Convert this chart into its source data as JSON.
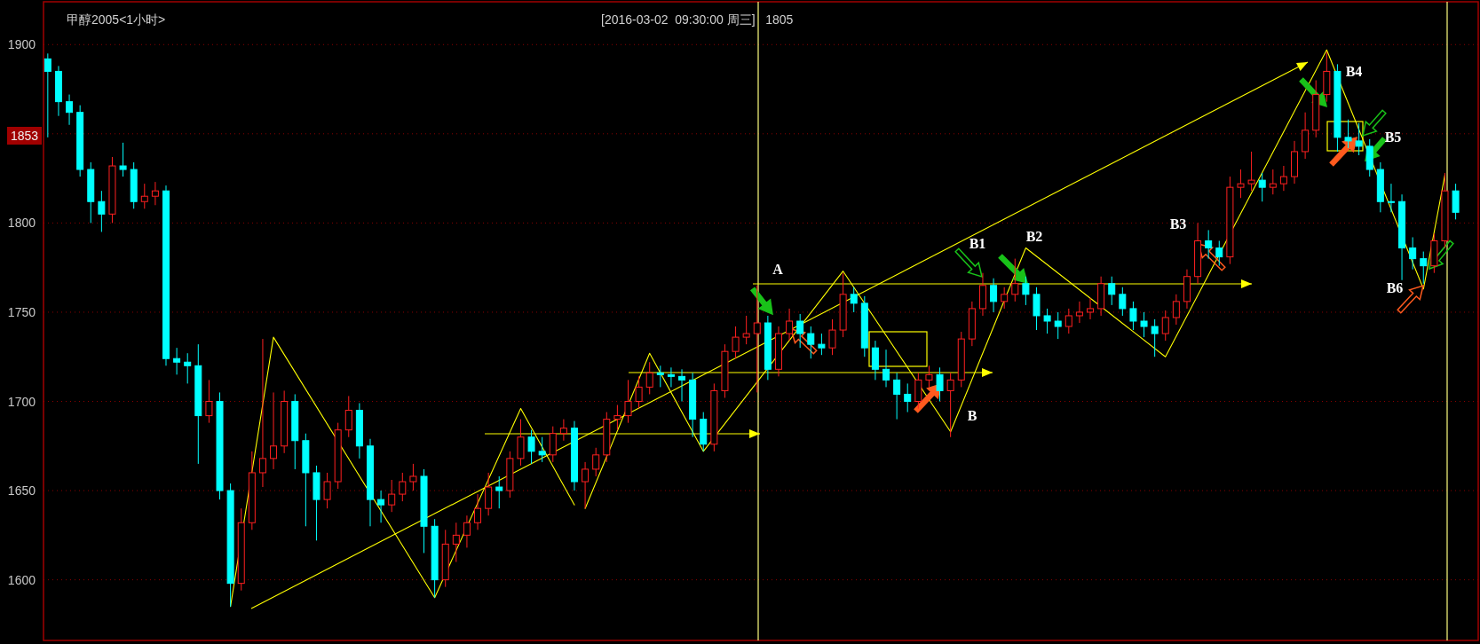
{
  "chart_data": {
    "type": "candlestick",
    "title": "甲醇2005<1小时>",
    "subtitle": "[2016-03-02  09:30:00 周三]   1805",
    "categories": [
      null,
      null,
      null,
      null,
      null,
      null,
      null,
      null,
      null,
      null,
      null,
      null,
      null,
      null,
      null,
      null,
      null,
      null,
      null,
      null,
      null,
      null,
      null,
      null,
      null,
      null,
      null,
      null,
      null,
      null,
      null,
      null,
      null,
      null,
      null,
      null,
      null,
      null,
      null,
      null,
      null,
      null,
      null,
      null,
      null,
      null,
      null,
      null,
      null,
      null,
      null,
      null,
      null,
      null,
      null,
      null,
      null,
      null,
      null,
      null,
      null,
      null,
      null,
      null,
      null,
      null,
      null,
      null,
      null,
      null,
      null,
      null,
      null,
      null,
      null,
      null,
      null,
      null,
      null,
      null,
      null,
      null,
      null,
      null,
      null,
      null,
      null,
      null,
      null,
      null,
      null,
      null,
      null,
      null,
      null,
      null,
      null,
      null,
      null,
      null,
      null,
      null,
      null,
      null,
      null,
      null,
      null,
      null,
      null,
      null,
      null,
      null,
      null,
      null,
      null,
      null,
      null,
      null,
      null,
      null,
      null,
      null,
      null,
      null,
      null,
      null,
      null,
      null,
      null,
      null,
      null,
      null
    ],
    "ohlc": [
      [
        1892,
        1895,
        1848,
        1885
      ],
      [
        1885,
        1888,
        1860,
        1868
      ],
      [
        1868,
        1872,
        1855,
        1862
      ],
      [
        1862,
        1866,
        1826,
        1830
      ],
      [
        1830,
        1834,
        1800,
        1812
      ],
      [
        1812,
        1818,
        1795,
        1805
      ],
      [
        1805,
        1837,
        1800,
        1832
      ],
      [
        1832,
        1845,
        1826,
        1830
      ],
      [
        1830,
        1834,
        1808,
        1812
      ],
      [
        1812,
        1822,
        1808,
        1815
      ],
      [
        1815,
        1823,
        1810,
        1818
      ],
      [
        1818,
        1821,
        1720,
        1724
      ],
      [
        1724,
        1730,
        1715,
        1722
      ],
      [
        1722,
        1727,
        1710,
        1720
      ],
      [
        1720,
        1732,
        1665,
        1692
      ],
      [
        1692,
        1712,
        1688,
        1700
      ],
      [
        1700,
        1705,
        1645,
        1650
      ],
      [
        1650,
        1654,
        1585,
        1598
      ],
      [
        1598,
        1640,
        1594,
        1632
      ],
      [
        1632,
        1672,
        1628,
        1660
      ],
      [
        1660,
        1735,
        1652,
        1668
      ],
      [
        1668,
        1705,
        1662,
        1675
      ],
      [
        1675,
        1706,
        1671,
        1700
      ],
      [
        1700,
        1704,
        1662,
        1678
      ],
      [
        1678,
        1682,
        1630,
        1660
      ],
      [
        1660,
        1664,
        1622,
        1645
      ],
      [
        1645,
        1660,
        1640,
        1655
      ],
      [
        1655,
        1688,
        1651,
        1684
      ],
      [
        1684,
        1703,
        1680,
        1695
      ],
      [
        1695,
        1699,
        1668,
        1675
      ],
      [
        1675,
        1679,
        1630,
        1645
      ],
      [
        1645,
        1650,
        1632,
        1642
      ],
      [
        1642,
        1656,
        1638,
        1648
      ],
      [
        1648,
        1660,
        1644,
        1655
      ],
      [
        1655,
        1665,
        1650,
        1658
      ],
      [
        1658,
        1662,
        1615,
        1630
      ],
      [
        1630,
        1634,
        1590,
        1600
      ],
      [
        1600,
        1628,
        1596,
        1620
      ],
      [
        1620,
        1632,
        1610,
        1625
      ],
      [
        1625,
        1636,
        1618,
        1632
      ],
      [
        1632,
        1648,
        1628,
        1640
      ],
      [
        1640,
        1660,
        1636,
        1652
      ],
      [
        1652,
        1658,
        1640,
        1650
      ],
      [
        1650,
        1672,
        1646,
        1668
      ],
      [
        1668,
        1690,
        1664,
        1680
      ],
      [
        1680,
        1684,
        1665,
        1672
      ],
      [
        1672,
        1680,
        1666,
        1670
      ],
      [
        1670,
        1686,
        1666,
        1682
      ],
      [
        1682,
        1690,
        1678,
        1685
      ],
      [
        1685,
        1689,
        1650,
        1655
      ],
      [
        1655,
        1666,
        1640,
        1662
      ],
      [
        1662,
        1674,
        1658,
        1670
      ],
      [
        1670,
        1694,
        1666,
        1690
      ],
      [
        1690,
        1698,
        1684,
        1692
      ],
      [
        1692,
        1712,
        1688,
        1700
      ],
      [
        1700,
        1714,
        1696,
        1708
      ],
      [
        1708,
        1722,
        1704,
        1716
      ],
      [
        1716,
        1720,
        1708,
        1715
      ],
      [
        1715,
        1719,
        1708,
        1714
      ],
      [
        1714,
        1718,
        1700,
        1712
      ],
      [
        1712,
        1716,
        1680,
        1690
      ],
      [
        1690,
        1694,
        1672,
        1676
      ],
      [
        1676,
        1710,
        1672,
        1706
      ],
      [
        1706,
        1732,
        1702,
        1728
      ],
      [
        1728,
        1742,
        1724,
        1736
      ],
      [
        1736,
        1748,
        1732,
        1738
      ],
      [
        1738,
        1765,
        1705,
        1744
      ],
      [
        1744,
        1748,
        1712,
        1718
      ],
      [
        1718,
        1742,
        1714,
        1738
      ],
      [
        1738,
        1752,
        1734,
        1745
      ],
      [
        1745,
        1749,
        1730,
        1738
      ],
      [
        1738,
        1742,
        1724,
        1732
      ],
      [
        1732,
        1738,
        1726,
        1730
      ],
      [
        1730,
        1746,
        1726,
        1740
      ],
      [
        1740,
        1772,
        1736,
        1760
      ],
      [
        1760,
        1764,
        1750,
        1755
      ],
      [
        1755,
        1759,
        1725,
        1730
      ],
      [
        1730,
        1734,
        1712,
        1718
      ],
      [
        1718,
        1729,
        1708,
        1712
      ],
      [
        1712,
        1716,
        1690,
        1704
      ],
      [
        1704,
        1710,
        1694,
        1700
      ],
      [
        1700,
        1716,
        1696,
        1712
      ],
      [
        1712,
        1720,
        1708,
        1715
      ],
      [
        1715,
        1719,
        1700,
        1706
      ],
      [
        1706,
        1716,
        1680,
        1712
      ],
      [
        1712,
        1739,
        1708,
        1735
      ],
      [
        1735,
        1756,
        1731,
        1752
      ],
      [
        1752,
        1772,
        1748,
        1765
      ],
      [
        1765,
        1769,
        1750,
        1756
      ],
      [
        1756,
        1764,
        1752,
        1760
      ],
      [
        1760,
        1780,
        1756,
        1766
      ],
      [
        1766,
        1770,
        1754,
        1760
      ],
      [
        1760,
        1764,
        1740,
        1748
      ],
      [
        1748,
        1752,
        1738,
        1745
      ],
      [
        1745,
        1750,
        1735,
        1742
      ],
      [
        1742,
        1752,
        1738,
        1748
      ],
      [
        1748,
        1756,
        1744,
        1750
      ],
      [
        1750,
        1758,
        1746,
        1752
      ],
      [
        1752,
        1770,
        1748,
        1766
      ],
      [
        1766,
        1770,
        1754,
        1760
      ],
      [
        1760,
        1764,
        1748,
        1752
      ],
      [
        1752,
        1756,
        1740,
        1745
      ],
      [
        1745,
        1750,
        1736,
        1742
      ],
      [
        1742,
        1746,
        1725,
        1738
      ],
      [
        1738,
        1751,
        1734,
        1747
      ],
      [
        1747,
        1760,
        1743,
        1756
      ],
      [
        1756,
        1774,
        1752,
        1770
      ],
      [
        1770,
        1800,
        1766,
        1790
      ],
      [
        1790,
        1796,
        1780,
        1786
      ],
      [
        1786,
        1790,
        1776,
        1781
      ],
      [
        1781,
        1826,
        1777,
        1820
      ],
      [
        1820,
        1830,
        1814,
        1822
      ],
      [
        1822,
        1840,
        1818,
        1824
      ],
      [
        1824,
        1828,
        1812,
        1820
      ],
      [
        1820,
        1830,
        1816,
        1822
      ],
      [
        1822,
        1832,
        1818,
        1826
      ],
      [
        1826,
        1846,
        1822,
        1840
      ],
      [
        1840,
        1862,
        1836,
        1852
      ],
      [
        1852,
        1880,
        1848,
        1872
      ],
      [
        1872,
        1896,
        1868,
        1885
      ],
      [
        1885,
        1889,
        1840,
        1848
      ],
      [
        1848,
        1858,
        1842,
        1846
      ],
      [
        1846,
        1856,
        1838,
        1843
      ],
      [
        1843,
        1847,
        1826,
        1830
      ],
      [
        1830,
        1834,
        1806,
        1812
      ],
      [
        1812,
        1822,
        1806,
        1812
      ],
      [
        1812,
        1816,
        1768,
        1786
      ],
      [
        1786,
        1792,
        1774,
        1780
      ],
      [
        1780,
        1784,
        1766,
        1776
      ],
      [
        1776,
        1794,
        1772,
        1790
      ],
      [
        1790,
        1828,
        1786,
        1818
      ],
      [
        1818,
        1822,
        1802,
        1806
      ]
    ],
    "series": [
      {
        "type": "line",
        "color": "#ffff00",
        "values": [
          null,
          null,
          null,
          null,
          null,
          null,
          null,
          null,
          null,
          null,
          null,
          null,
          null,
          null,
          null,
          null,
          null,
          1585,
          null,
          null,
          null,
          1736,
          null,
          null,
          null,
          null,
          null,
          null,
          null,
          null,
          null,
          null,
          null,
          null,
          null,
          null,
          1590,
          null,
          null,
          null,
          null,
          null,
          null,
          null,
          1696,
          null,
          null,
          null,
          null,
          1642,
          null,
          null,
          null,
          null,
          null,
          null,
          null,
          null,
          null,
          null,
          null,
          null,
          null,
          null,
          null,
          null,
          null,
          null,
          null,
          null,
          null,
          null,
          null,
          null,
          null,
          null,
          null,
          null,
          null,
          null,
          null,
          null,
          null,
          null,
          null,
          null,
          null,
          null,
          null,
          null,
          null,
          null,
          null,
          null,
          null,
          null,
          null,
          null,
          null,
          null,
          null,
          null,
          null,
          null,
          null,
          null,
          null,
          null,
          null,
          null,
          null,
          null,
          null,
          null,
          null,
          null,
          null,
          null,
          null,
          null,
          null,
          null,
          null,
          null,
          null,
          null,
          null,
          null,
          null,
          null,
          null,
          null
        ]
      },
      {
        "type": "line",
        "color": "#ffff00",
        "values": [
          null,
          null,
          null,
          null,
          null,
          null,
          null,
          null,
          null,
          null,
          null,
          null,
          null,
          null,
          null,
          null,
          null,
          null,
          null,
          null,
          null,
          null,
          null,
          null,
          null,
          null,
          null,
          null,
          null,
          null,
          null,
          null,
          null,
          null,
          null,
          null,
          null,
          null,
          null,
          null,
          null,
          null,
          null,
          null,
          null,
          null,
          null,
          null,
          null,
          null,
          1640,
          null,
          null,
          null,
          null,
          null,
          1727,
          null,
          null,
          null,
          null,
          1672,
          null,
          null,
          null,
          null,
          null,
          null,
          null,
          null,
          null,
          null,
          null,
          null,
          1773,
          null,
          null,
          null,
          null,
          null,
          null,
          null,
          null,
          null,
          1683,
          null,
          null,
          null,
          null,
          null,
          null,
          1786,
          null,
          null,
          null,
          null,
          null,
          null,
          null,
          null,
          null,
          null,
          null,
          null,
          1725,
          null,
          null,
          null,
          null,
          null,
          null,
          null,
          null,
          null,
          null,
          null,
          null,
          null,
          null,
          1897,
          null,
          null,
          null,
          null,
          null,
          null,
          null,
          null,
          1763,
          null,
          1827,
          null
        ]
      }
    ],
    "annotations": [
      "1853",
      "A",
      "B",
      "B1",
      "B2",
      "B3",
      "B4",
      "B5",
      "B6"
    ],
    "ylim": [
      1566,
      1924
    ],
    "yticks": [
      1600,
      1650,
      1700,
      1750,
      1800,
      {
        "value": 1850,
        "label": null
      },
      1900
    ],
    "grid": "y"
  }
}
